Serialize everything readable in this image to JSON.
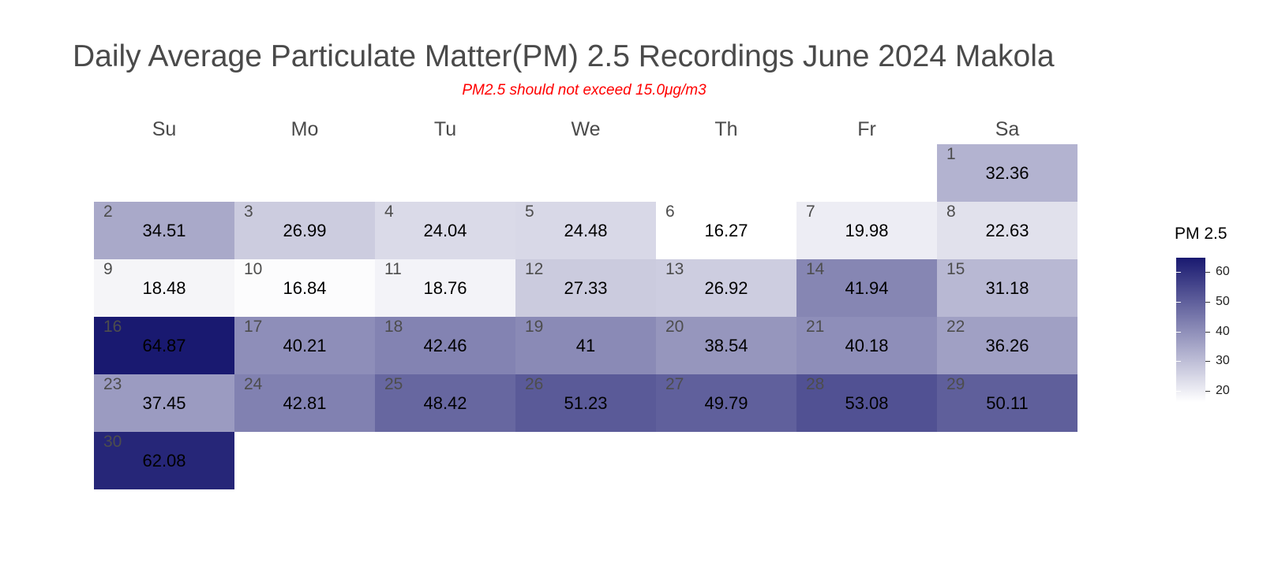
{
  "chart_data": {
    "type": "heatmap",
    "title": "Daily Average Particulate Matter(PM) 2.5 Recordings June 2024 Makola",
    "subtitle": "PM2.5 should not exceed 15.0μg/m3",
    "weekdays": [
      "Su",
      "Mo",
      "Tu",
      "We",
      "Th",
      "Fr",
      "Sa"
    ],
    "first_weekday_index": 6,
    "days": [
      {
        "day": 1,
        "label": "32.36",
        "value": 32.36
      },
      {
        "day": 2,
        "label": "34.51",
        "value": 34.51
      },
      {
        "day": 3,
        "label": "26.99",
        "value": 26.99
      },
      {
        "day": 4,
        "label": "24.04",
        "value": 24.04
      },
      {
        "day": 5,
        "label": "24.48",
        "value": 24.48
      },
      {
        "day": 6,
        "label": "16.27",
        "value": 16.27
      },
      {
        "day": 7,
        "label": "19.98",
        "value": 19.98
      },
      {
        "day": 8,
        "label": "22.63",
        "value": 22.63
      },
      {
        "day": 9,
        "label": "18.48",
        "value": 18.48
      },
      {
        "day": 10,
        "label": "16.84",
        "value": 16.84
      },
      {
        "day": 11,
        "label": "18.76",
        "value": 18.76
      },
      {
        "day": 12,
        "label": "27.33",
        "value": 27.33
      },
      {
        "day": 13,
        "label": "26.92",
        "value": 26.92
      },
      {
        "day": 14,
        "label": "41.94",
        "value": 41.94
      },
      {
        "day": 15,
        "label": "31.18",
        "value": 31.18
      },
      {
        "day": 16,
        "label": "64.87",
        "value": 64.87
      },
      {
        "day": 17,
        "label": "40.21",
        "value": 40.21
      },
      {
        "day": 18,
        "label": "42.46",
        "value": 42.46
      },
      {
        "day": 19,
        "label": "41",
        "value": 41
      },
      {
        "day": 20,
        "label": "38.54",
        "value": 38.54
      },
      {
        "day": 21,
        "label": "40.18",
        "value": 40.18
      },
      {
        "day": 22,
        "label": "36.26",
        "value": 36.26
      },
      {
        "day": 23,
        "label": "37.45",
        "value": 37.45
      },
      {
        "day": 24,
        "label": "42.81",
        "value": 42.81
      },
      {
        "day": 25,
        "label": "48.42",
        "value": 48.42
      },
      {
        "day": 26,
        "label": "51.23",
        "value": 51.23
      },
      {
        "day": 27,
        "label": "49.79",
        "value": 49.79
      },
      {
        "day": 28,
        "label": "53.08",
        "value": 53.08
      },
      {
        "day": 29,
        "label": "50.11",
        "value": 50.11
      },
      {
        "day": 30,
        "label": "62.08",
        "value": 62.08
      }
    ],
    "legend": {
      "title": "PM 2.5",
      "ticks": [
        20,
        30,
        40,
        50,
        60
      ],
      "range": [
        16.27,
        64.87
      ],
      "color_low": "#ffffff",
      "color_high": "#191970"
    }
  }
}
